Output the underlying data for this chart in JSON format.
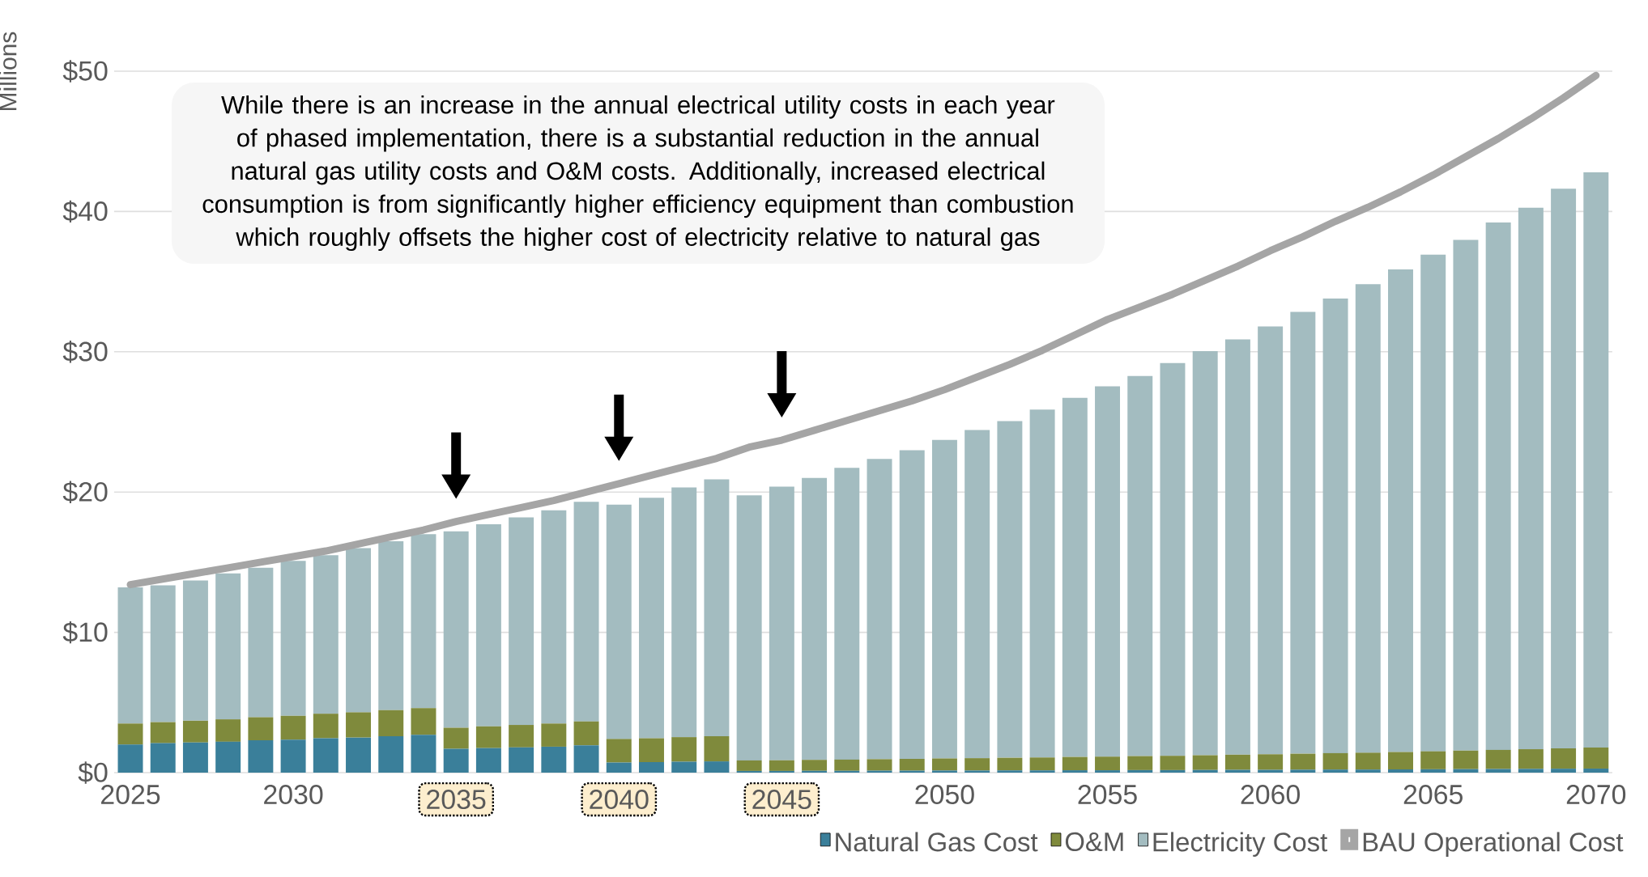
{
  "chart_data": {
    "type": "bar",
    "stacked": true,
    "categories": [
      "2025",
      null,
      null,
      null,
      null,
      "2030",
      null,
      null,
      null,
      null,
      "2035",
      null,
      null,
      null,
      null,
      "2040",
      null,
      null,
      null,
      null,
      "2045",
      null,
      null,
      null,
      null,
      "2050",
      null,
      null,
      null,
      null,
      "2055",
      null,
      null,
      null,
      null,
      "2060",
      null,
      null,
      null,
      null,
      "2065",
      null,
      null,
      null,
      null,
      "2070"
    ],
    "ylabel": "Millions",
    "ylim": [
      0,
      50
    ],
    "yticks": [
      {
        "value": 0,
        "label": "$0"
      },
      {
        "value": 10,
        "label": "$10"
      },
      {
        "value": 20,
        "label": "$20"
      },
      {
        "value": 30,
        "label": "$30"
      },
      {
        "value": 40,
        "label": "$40"
      },
      {
        "value": 50,
        "label": "$50"
      }
    ],
    "grid": "y",
    "legend": "bottom right",
    "annotations": [
      "While there is an increase in the annual electrical utility costs in each year of phased implementation, there is a substantial reduction in the annual natural gas utility costs and O&M costs. Additionally, increased electrical consumption is from significantly higher efficiency equipment than combustion which roughly offsets the higher cost of electricity relative to natural gas"
    ],
    "series": [
      {
        "name": "Natural Gas Cost",
        "color": "#3a7f9a",
        "values": [
          2.0,
          2.1,
          2.15,
          2.2,
          2.3,
          2.35,
          2.45,
          2.5,
          2.6,
          2.7,
          1.7,
          1.75,
          1.8,
          1.85,
          1.95,
          0.72,
          0.75,
          0.78,
          0.8,
          0.12,
          0.12,
          0.13,
          0.13,
          0.14,
          0.14,
          0.15,
          0.15,
          0.16,
          0.16,
          0.17,
          0.17,
          0.18,
          0.18,
          0.19,
          0.2,
          0.2,
          0.21,
          0.22,
          0.22,
          0.23,
          0.24,
          0.25,
          0.26,
          0.27,
          0.28,
          0.29
        ]
      },
      {
        "name": "O&M",
        "color": "#7f8a3c",
        "values": [
          1.5,
          1.5,
          1.55,
          1.6,
          1.65,
          1.7,
          1.75,
          1.8,
          1.85,
          1.9,
          1.5,
          1.55,
          1.6,
          1.65,
          1.7,
          1.68,
          1.7,
          1.75,
          1.8,
          0.75,
          0.76,
          0.78,
          0.8,
          0.82,
          0.84,
          0.86,
          0.88,
          0.9,
          0.92,
          0.95,
          0.97,
          1.0,
          1.02,
          1.05,
          1.08,
          1.11,
          1.14,
          1.17,
          1.2,
          1.24,
          1.28,
          1.32,
          1.36,
          1.4,
          1.45,
          1.5
        ]
      },
      {
        "name": "Electricity Cost",
        "color": "#a3bcc0",
        "values": [
          9.7,
          9.75,
          10.0,
          10.4,
          10.65,
          11.05,
          11.3,
          11.7,
          12.05,
          12.4,
          14.0,
          14.4,
          14.8,
          15.2,
          15.65,
          16.7,
          17.15,
          17.8,
          18.3,
          18.9,
          19.5,
          20.1,
          20.8,
          21.4,
          22.0,
          22.7,
          23.4,
          24.0,
          24.8,
          25.6,
          26.4,
          27.1,
          28.0,
          28.8,
          29.6,
          30.5,
          31.5,
          32.4,
          33.4,
          34.4,
          35.4,
          36.4,
          37.6,
          38.6,
          39.9,
          41.0
        ]
      },
      {
        "name": "BAU Operational Cost",
        "type": "line",
        "color": "#a5a5a5",
        "values": [
          13.4,
          13.8,
          14.2,
          14.6,
          15.0,
          15.4,
          15.8,
          16.3,
          16.8,
          17.3,
          17.9,
          18.4,
          18.9,
          19.4,
          20.0,
          20.6,
          21.2,
          21.8,
          22.4,
          23.2,
          23.7,
          24.4,
          25.1,
          25.8,
          26.5,
          27.3,
          28.2,
          29.1,
          30.1,
          31.2,
          32.3,
          33.2,
          34.1,
          35.1,
          36.1,
          37.2,
          38.2,
          39.3,
          40.3,
          41.4,
          42.6,
          43.9,
          45.2,
          46.6,
          48.1,
          49.7
        ]
      }
    ]
  }
}
